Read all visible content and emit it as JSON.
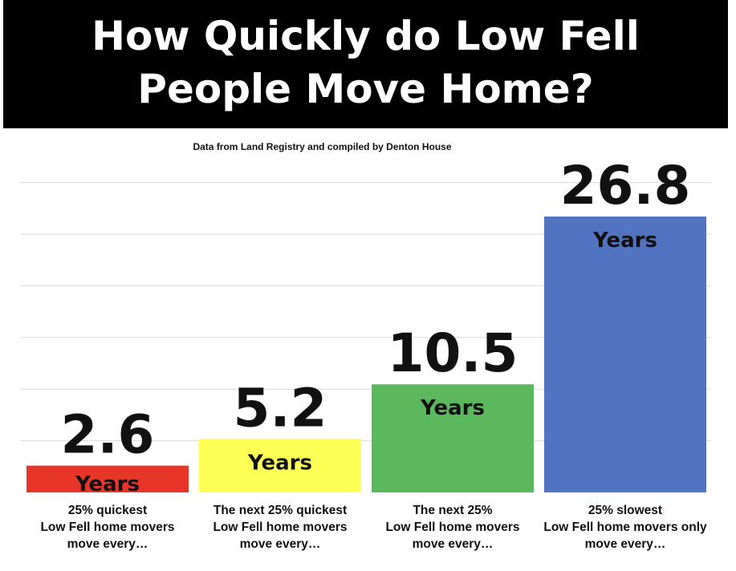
{
  "header": {
    "title_line1": "How Quickly do Low Fell",
    "title_line2": "People Move Home?"
  },
  "subtitle": "Data from Land Registry and compiled by Denton House",
  "chart_data": {
    "type": "bar",
    "title": "How Quickly do Low Fell People Move Home?",
    "subtitle": "Data from Land Registry and compiled by Denton House",
    "categories": [
      [
        "25% quickest",
        "Low Fell home movers",
        "move every…"
      ],
      [
        "The next 25% quickest",
        "Low Fell home movers",
        "move every…"
      ],
      [
        "The next 25%",
        "Low Fell home movers",
        "move every…"
      ],
      [
        "25% slowest",
        "Low Fell home movers only",
        "move every…"
      ]
    ],
    "values": [
      2.6,
      5.2,
      10.5,
      26.8
    ],
    "value_labels": [
      "2.6",
      "5.2",
      "10.5",
      "26.8"
    ],
    "unit_label": "Years",
    "colors": [
      "#e8352a",
      "#fefe55",
      "#5cb85c",
      "#5173c0"
    ],
    "ylim": [
      0,
      30
    ],
    "grid": true,
    "xlabel": "",
    "ylabel": ""
  }
}
